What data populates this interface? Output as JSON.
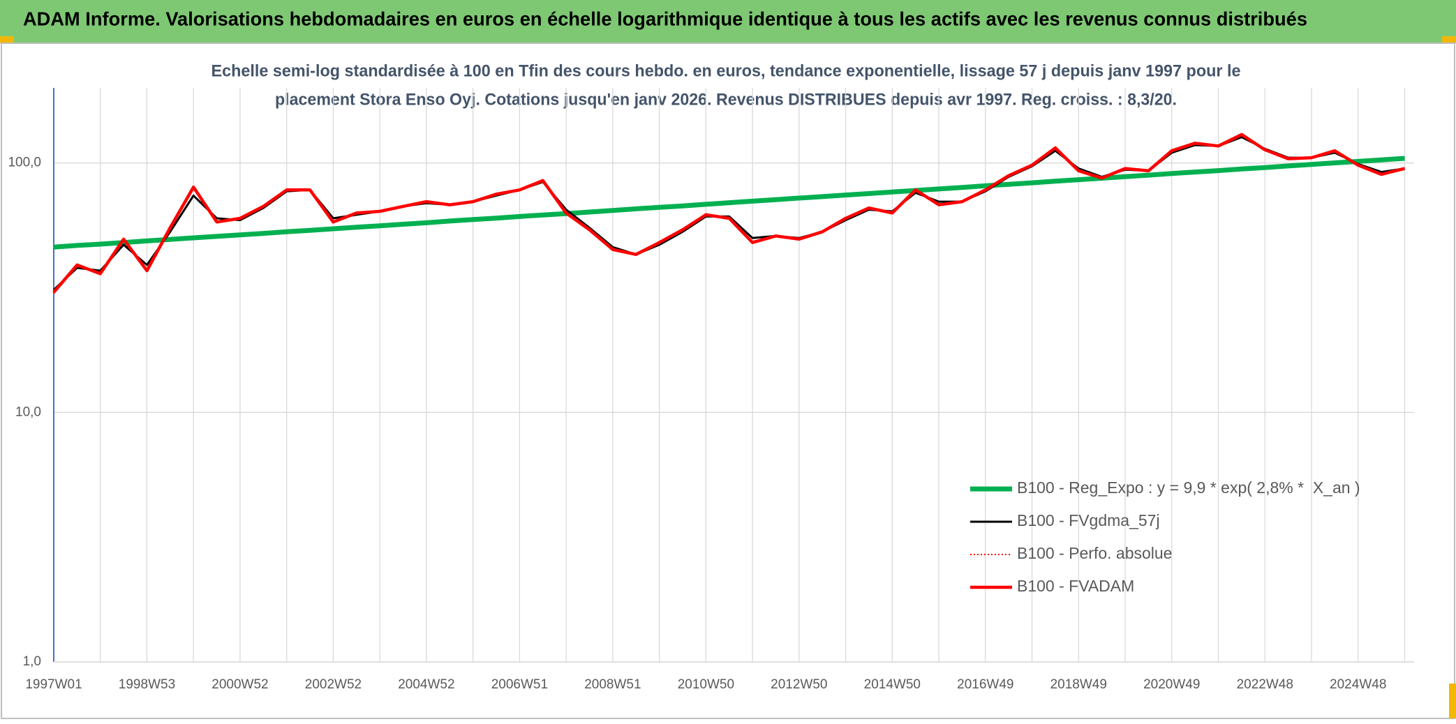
{
  "header": {
    "title": "ADAM Informe. Valorisations hebdomadaires en euros en échelle logarithmique identique à tous les actifs avec les revenus connus distribués"
  },
  "chart_data": {
    "type": "line",
    "subtitle": [
      "Echelle semi-log standardisée à 100 en Tfin des cours hebdo. en euros, tendance exponentielle, lissage 57 j depuis janv 1997 pour le",
      "placement Stora Enso Oyj. Cotations jusqu'en janv 2026. Revenus DISTRIBUES depuis avr 1997. Reg. croiss. : 8,3/20."
    ],
    "categories": [
      "1997W01",
      null,
      null,
      null,
      "1998W53",
      null,
      null,
      null,
      "2000W52",
      null,
      null,
      null,
      "2002W52",
      null,
      null,
      null,
      "2004W52",
      null,
      null,
      null,
      "2006W51",
      null,
      null,
      null,
      "2008W51",
      null,
      null,
      null,
      "2010W50",
      null,
      null,
      null,
      "2012W50",
      null,
      null,
      null,
      "2014W50",
      null,
      null,
      null,
      "2016W49",
      null,
      null,
      null,
      "2018W49",
      null,
      null,
      null,
      "2020W49",
      null,
      null,
      null,
      "2022W48",
      null,
      null,
      null,
      "2024W48",
      null,
      null
    ],
    "series": [
      {
        "name": "B100 - Reg_Expo : y = 9,9 * exp( 2,8% *  X_an )",
        "color": "#00b050",
        "style": "solid",
        "values": [
          46.0,
          46.7,
          47.3,
          48.0,
          48.7,
          49.4,
          50.1,
          50.8,
          51.5,
          52.2,
          53.0,
          53.7,
          54.5,
          55.3,
          56.0,
          56.8,
          57.6,
          58.5,
          59.3,
          60.1,
          61.0,
          61.9,
          62.7,
          63.6,
          64.5,
          65.5,
          66.4,
          67.3,
          68.3,
          69.3,
          70.3,
          71.3,
          72.3,
          73.3,
          74.4,
          75.4,
          76.5,
          77.6,
          78.7,
          79.8,
          81.0,
          82.1,
          83.3,
          84.5,
          85.7,
          86.9,
          88.1,
          89.4,
          90.7,
          92.0,
          93.2,
          94.6,
          95.9,
          97.3,
          98.7,
          100.1,
          101.5,
          102.9,
          104.4
        ]
      },
      {
        "name": "B100 - FVgdma_57j",
        "color": "#000000",
        "style": "solid",
        "values": [
          31,
          38,
          37,
          47,
          39,
          53,
          74,
          60,
          59,
          66,
          77,
          78,
          60,
          62,
          64,
          67,
          69,
          68,
          70,
          74,
          78,
          84,
          65,
          55,
          46,
          43,
          47,
          53,
          61,
          61,
          50,
          51,
          50,
          53,
          59,
          65,
          64,
          76,
          70,
          70,
          77,
          88,
          97,
          112,
          95,
          88,
          94,
          93,
          110,
          118,
          117,
          127,
          114,
          105,
          105,
          110,
          99,
          92,
          95
        ]
      },
      {
        "name": "B100 - Perfo. absolue",
        "color": "#ff0000",
        "style": "dotted",
        "values": [
          30,
          39,
          36,
          49,
          37,
          55,
          80,
          58,
          60,
          67,
          78,
          78,
          58,
          63,
          64,
          67,
          70,
          68,
          70,
          75,
          78,
          85,
          63,
          54,
          45,
          43,
          48,
          54,
          62,
          60,
          48,
          51,
          49.5,
          53,
          60,
          66,
          63,
          78,
          68,
          70,
          78,
          89,
          98,
          115,
          93,
          87,
          95,
          93,
          112,
          120,
          117,
          130,
          113,
          104,
          105,
          112,
          98,
          90,
          95
        ]
      },
      {
        "name": "B100 - FVADAM",
        "color": "#ff0000",
        "style": "solid",
        "values": [
          30.3,
          39,
          36,
          49.5,
          37,
          55,
          80,
          58,
          60,
          67,
          78,
          78,
          58,
          63,
          64,
          67,
          70,
          68,
          70,
          75,
          78,
          85,
          63,
          54,
          45,
          43,
          48,
          54,
          62,
          60,
          48,
          51,
          49.5,
          53,
          60,
          66,
          63,
          78,
          68,
          70,
          78,
          89,
          98,
          115,
          93,
          87,
          95,
          93,
          112,
          120,
          117,
          130,
          113,
          104,
          105,
          112,
          98,
          90,
          95
        ]
      }
    ],
    "ylog": true,
    "ylim": [
      1,
      200
    ],
    "yticks": [
      {
        "value": 1,
        "label": "1,0"
      },
      {
        "value": 10,
        "label": "10,0"
      },
      {
        "value": 100,
        "label": "100,0"
      }
    ],
    "grid": true,
    "legend": "lower right"
  }
}
